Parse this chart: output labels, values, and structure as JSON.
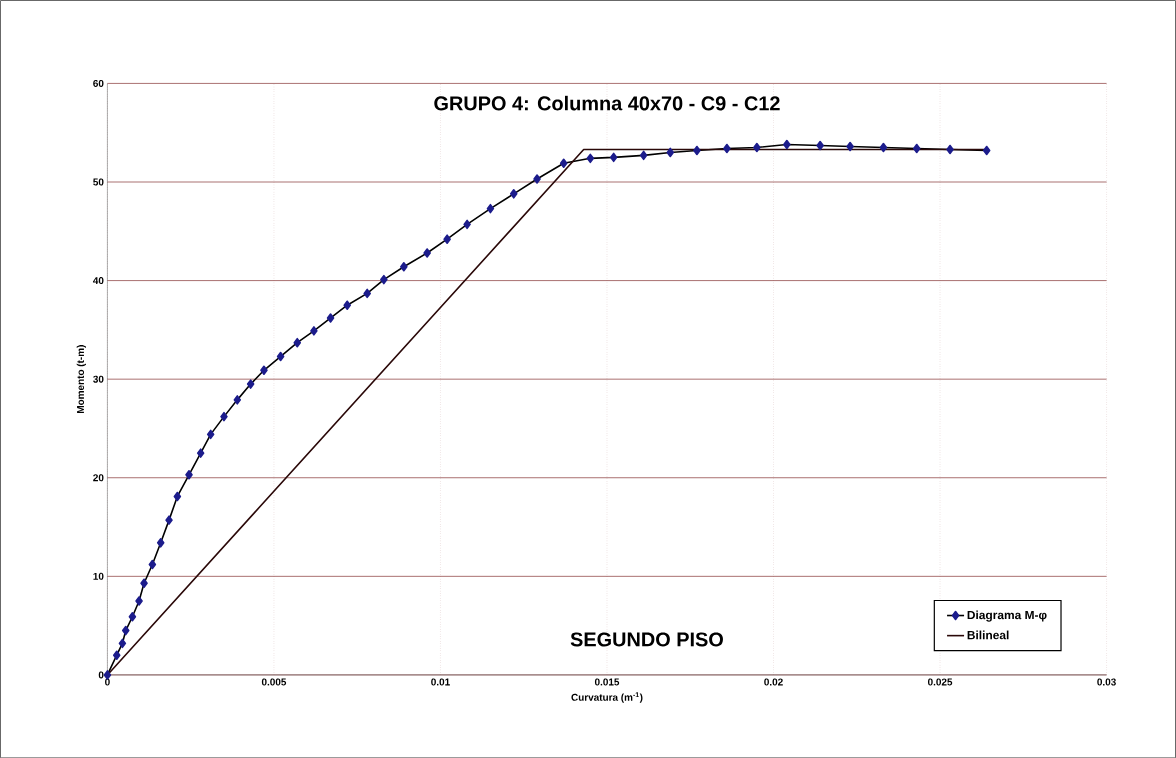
{
  "chart_data": {
    "type": "line",
    "title": "GRUPO 4: Columna 40x70 - C9 - C12",
    "xlabel": "Curvatura (m$^{-1}$)",
    "ylabel": "Momento (t-m)",
    "annotations": [
      "SEGUNDO PISO"
    ],
    "series": [
      {
        "name": "Diagrama M-φ",
        "color": "#1c1c8c",
        "marker": "diamond",
        "x": [
          0,
          0.00028,
          0.00045,
          0.00055,
          0.00075,
          0.00095,
          0.0011,
          0.00135,
          0.0016,
          0.00185,
          0.0021,
          0.00245,
          0.0028,
          0.0031,
          0.0035,
          0.0039,
          0.0043,
          0.0047,
          0.0052,
          0.0057,
          0.0062,
          0.0067,
          0.0072,
          0.0078,
          0.0083,
          0.0089,
          0.0096,
          0.0102,
          0.0108,
          0.0115,
          0.0122,
          0.0129,
          0.0137,
          0.0145,
          0.0152,
          0.0161,
          0.0169,
          0.0177,
          0.0186,
          0.0195,
          0.0204,
          0.0214,
          0.0223,
          0.0233,
          0.0243,
          0.0253,
          0.0264
        ],
        "values": [
          0,
          2.0,
          3.2,
          4.5,
          5.9,
          7.5,
          9.3,
          11.2,
          13.4,
          15.7,
          18.1,
          20.3,
          22.5,
          24.4,
          26.2,
          27.9,
          29.5,
          30.9,
          32.3,
          33.7,
          34.9,
          36.2,
          37.5,
          38.7,
          40.1,
          41.4,
          42.8,
          44.2,
          45.7,
          47.3,
          48.8,
          50.3,
          51.9,
          52.4,
          52.5,
          52.7,
          53.0,
          53.2,
          53.4,
          53.5,
          53.8,
          53.7,
          53.6,
          53.5,
          53.4,
          53.3,
          53.2
        ]
      },
      {
        "name": "Bilineal",
        "color": "#2a0808",
        "marker": "none",
        "x": [
          0,
          0.0143,
          0.0264
        ],
        "values": [
          0,
          53.3,
          53.3
        ]
      }
    ],
    "xlim": [
      0,
      0.03
    ],
    "ylim": [
      0,
      60
    ],
    "xticks": [
      0,
      0.005,
      0.01,
      0.015,
      0.02,
      0.025,
      0.03
    ],
    "yticks": [
      0,
      10,
      20,
      30,
      40,
      50,
      60
    ],
    "grid": true,
    "legend": "bottom right"
  }
}
